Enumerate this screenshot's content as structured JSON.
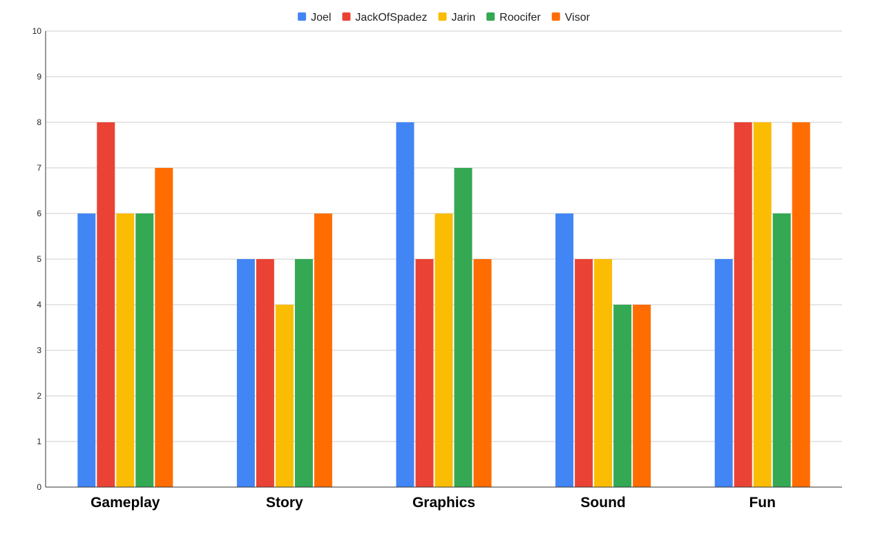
{
  "chart_data": {
    "type": "bar",
    "categories": [
      "Gameplay",
      "Story",
      "Graphics",
      "Sound",
      "Fun"
    ],
    "series": [
      {
        "name": "Joel",
        "color": "#4285F4",
        "values": [
          6,
          5,
          8,
          6,
          5
        ]
      },
      {
        "name": "JackOfSpadez",
        "color": "#EA4335",
        "values": [
          8,
          5,
          5,
          5,
          8
        ]
      },
      {
        "name": "Jarin",
        "color": "#FBBC04",
        "values": [
          6,
          4,
          6,
          5,
          8
        ]
      },
      {
        "name": "Roocifer",
        "color": "#34A853",
        "values": [
          6,
          5,
          7,
          4,
          6
        ]
      },
      {
        "name": "Visor",
        "color": "#FF6D01",
        "values": [
          7,
          6,
          5,
          4,
          8
        ]
      }
    ],
    "title": "",
    "xlabel": "",
    "ylabel": "",
    "ylim": [
      0,
      10
    ],
    "yticks": [
      0,
      1,
      2,
      3,
      4,
      5,
      6,
      7,
      8,
      9,
      10
    ],
    "grid": true,
    "legend_position": "top"
  }
}
